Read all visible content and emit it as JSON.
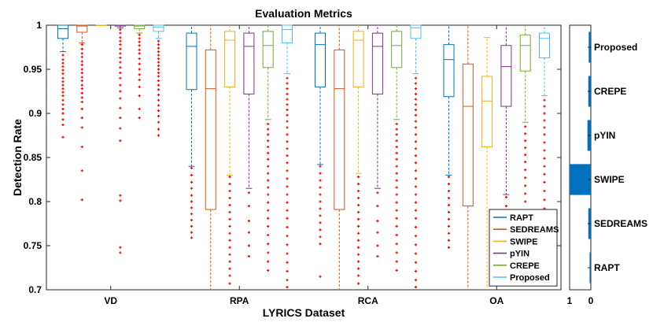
{
  "chart_data": [
    {
      "type": "boxplot",
      "title": "Evaluation Metrics",
      "xlabel": "LYRICS Dataset",
      "ylabel": "Detection Rate",
      "ylim": [
        0.7,
        1.0
      ],
      "yticks": [
        0.7,
        0.75,
        0.8,
        0.85,
        0.9,
        0.95,
        1
      ],
      "ytick_labels": [
        "0.7",
        "0.75",
        "0.8",
        "0.85",
        "0.9",
        "0.95",
        "1"
      ],
      "groups": [
        "VD",
        "RPA",
        "RCA",
        "OA"
      ],
      "legend_location": "bottom-right",
      "series": [
        {
          "name": "RAPT",
          "color": "#0072BD"
        },
        {
          "name": "SEDREAMS",
          "color": "#D95319"
        },
        {
          "name": "SWIPE",
          "color": "#EDB120"
        },
        {
          "name": "pYIN",
          "color": "#7E2F8E"
        },
        {
          "name": "CREPE",
          "color": "#77AC30"
        },
        {
          "name": "Proposed",
          "color": "#4DBEEE"
        }
      ],
      "outlier_color": "#ff0000",
      "boxes": [
        {
          "group": "VD",
          "series": "RAPT",
          "min": 0.97,
          "q1": 0.985,
          "median": 0.996,
          "q3": 1.0,
          "max": 1.0,
          "outliers": [
            0.966,
            0.961,
            0.957,
            0.953,
            0.949,
            0.945,
            0.94,
            0.936,
            0.932,
            0.928,
            0.924,
            0.92,
            0.915,
            0.91,
            0.905,
            0.9,
            0.893,
            0.887,
            0.873
          ]
        },
        {
          "group": "VD",
          "series": "SEDREAMS",
          "min": 0.98,
          "q1": 0.992,
          "median": 0.999,
          "q3": 1.0,
          "max": 1.0,
          "outliers": [
            0.978,
            0.973,
            0.968,
            0.964,
            0.959,
            0.955,
            0.95,
            0.946,
            0.941,
            0.937,
            0.932,
            0.928,
            0.923,
            0.918,
            0.913,
            0.905,
            0.895,
            0.884,
            0.862,
            0.835,
            0.802
          ]
        },
        {
          "group": "VD",
          "series": "SWIPE",
          "min": 1.0,
          "q1": 1.0,
          "median": 1.0,
          "q3": 1.0,
          "max": 1.0,
          "outliers": []
        },
        {
          "group": "VD",
          "series": "pYIN",
          "min": 0.997,
          "q1": 0.999,
          "median": 1.0,
          "q3": 1.0,
          "max": 1.0,
          "outliers": [
            0.995,
            0.991,
            0.986,
            0.982,
            0.978,
            0.973,
            0.968,
            0.963,
            0.958,
            0.952,
            0.946,
            0.94,
            0.932,
            0.925,
            0.917,
            0.906,
            0.895,
            0.883,
            0.869,
            0.807,
            0.801,
            0.748,
            0.742
          ]
        },
        {
          "group": "VD",
          "series": "CREPE",
          "min": 0.991,
          "q1": 0.996,
          "median": 0.999,
          "q3": 1.0,
          "max": 1.0,
          "outliers": [
            0.989,
            0.985,
            0.981,
            0.977,
            0.972,
            0.968,
            0.962,
            0.956,
            0.95,
            0.944,
            0.938,
            0.93,
            0.92,
            0.905,
            0.895
          ]
        },
        {
          "group": "VD",
          "series": "Proposed",
          "min": 0.985,
          "q1": 0.993,
          "median": 0.998,
          "q3": 1.0,
          "max": 1.0,
          "outliers": [
            0.982,
            0.978,
            0.974,
            0.97,
            0.966,
            0.962,
            0.958,
            0.954,
            0.95,
            0.946,
            0.942,
            0.937,
            0.932,
            0.927,
            0.921,
            0.915,
            0.909,
            0.903,
            0.897,
            0.89,
            0.882,
            0.875
          ]
        },
        {
          "group": "RPA",
          "series": "RAPT",
          "min": 0.84,
          "q1": 0.927,
          "median": 0.976,
          "q3": 0.991,
          "max": 1.0,
          "outliers": [
            0.838,
            0.83,
            0.822,
            0.815,
            0.807,
            0.8,
            0.793,
            0.786,
            0.779,
            0.772,
            0.765,
            0.759
          ]
        },
        {
          "group": "RPA",
          "series": "SEDREAMS",
          "min": 0.7,
          "q1": 0.791,
          "median": 0.928,
          "q3": 0.972,
          "max": 1.0,
          "outliers": []
        },
        {
          "group": "RPA",
          "series": "SWIPE",
          "min": 0.83,
          "q1": 0.93,
          "median": 0.983,
          "q3": 0.993,
          "max": 1.0,
          "outliers": [
            0.828,
            0.82,
            0.812,
            0.804,
            0.796,
            0.788,
            0.78,
            0.772,
            0.764,
            0.756,
            0.748,
            0.74,
            0.732,
            0.724,
            0.716,
            0.707
          ]
        },
        {
          "group": "RPA",
          "series": "pYIN",
          "min": 0.815,
          "q1": 0.922,
          "median": 0.976,
          "q3": 0.991,
          "max": 1.0,
          "outliers": [
            0.81,
            0.795,
            0.778,
            0.765,
            0.75,
            0.738
          ]
        },
        {
          "group": "RPA",
          "series": "CREPE",
          "min": 0.893,
          "q1": 0.952,
          "median": 0.977,
          "q3": 0.993,
          "max": 1.0,
          "outliers": [
            0.888,
            0.882,
            0.876,
            0.869,
            0.862,
            0.855,
            0.848,
            0.84,
            0.832,
            0.824,
            0.816,
            0.808,
            0.799,
            0.79,
            0.781,
            0.772,
            0.762,
            0.752,
            0.742,
            0.732,
            0.722
          ]
        },
        {
          "group": "RPA",
          "series": "Proposed",
          "min": 0.945,
          "q1": 0.98,
          "median": 0.995,
          "q3": 1.0,
          "max": 1.0,
          "outliers": [
            0.94,
            0.934,
            0.928,
            0.922,
            0.916,
            0.91,
            0.904,
            0.898,
            0.891,
            0.884,
            0.876,
            0.868,
            0.86,
            0.852,
            0.844,
            0.835,
            0.826,
            0.817,
            0.808,
            0.799,
            0.79,
            0.781,
            0.771,
            0.761,
            0.751,
            0.741,
            0.731,
            0.721,
            0.711,
            0.703
          ]
        },
        {
          "group": "RCA",
          "series": "RAPT",
          "min": 0.842,
          "q1": 0.93,
          "median": 0.978,
          "q3": 0.991,
          "max": 1.0,
          "outliers": [
            0.84,
            0.832,
            0.824,
            0.816,
            0.808,
            0.8,
            0.792,
            0.784,
            0.776,
            0.768,
            0.76,
            0.752,
            0.715
          ]
        },
        {
          "group": "RCA",
          "series": "SEDREAMS",
          "min": 0.7,
          "q1": 0.791,
          "median": 0.928,
          "q3": 0.972,
          "max": 1.0,
          "outliers": []
        },
        {
          "group": "RCA",
          "series": "SWIPE",
          "min": 0.832,
          "q1": 0.93,
          "median": 0.983,
          "q3": 0.993,
          "max": 1.0,
          "outliers": [
            0.828,
            0.82,
            0.812,
            0.804,
            0.796,
            0.788,
            0.78,
            0.772,
            0.764,
            0.756,
            0.748,
            0.74,
            0.732,
            0.724,
            0.716,
            0.707
          ]
        },
        {
          "group": "RCA",
          "series": "pYIN",
          "min": 0.815,
          "q1": 0.922,
          "median": 0.976,
          "q3": 0.991,
          "max": 1.0,
          "outliers": [
            0.81,
            0.795,
            0.778,
            0.765,
            0.75,
            0.738
          ]
        },
        {
          "group": "RCA",
          "series": "CREPE",
          "min": 0.893,
          "q1": 0.952,
          "median": 0.977,
          "q3": 0.993,
          "max": 1.0,
          "outliers": [
            0.888,
            0.882,
            0.876,
            0.869,
            0.862,
            0.855,
            0.848,
            0.84,
            0.832,
            0.824,
            0.816,
            0.808,
            0.799,
            0.79,
            0.781,
            0.772,
            0.762,
            0.752,
            0.742,
            0.732,
            0.722
          ]
        },
        {
          "group": "RCA",
          "series": "Proposed",
          "min": 0.945,
          "q1": 0.985,
          "median": 0.997,
          "q3": 1.0,
          "max": 1.0,
          "outliers": [
            0.94,
            0.934,
            0.928,
            0.922,
            0.916,
            0.91,
            0.904,
            0.898,
            0.891,
            0.884,
            0.876,
            0.868,
            0.86,
            0.852,
            0.844,
            0.835,
            0.826,
            0.817,
            0.808,
            0.799,
            0.79,
            0.781,
            0.771,
            0.761,
            0.751,
            0.741,
            0.731,
            0.721,
            0.711,
            0.703
          ]
        },
        {
          "group": "OA",
          "series": "RAPT",
          "min": 0.83,
          "q1": 0.919,
          "median": 0.961,
          "q3": 0.978,
          "max": 1.0,
          "outliers": [
            0.828,
            0.82,
            0.812,
            0.804,
            0.796,
            0.788,
            0.78,
            0.772,
            0.764,
            0.756,
            0.748
          ]
        },
        {
          "group": "OA",
          "series": "SEDREAMS",
          "min": 0.7,
          "q1": 0.795,
          "median": 0.908,
          "q3": 0.956,
          "max": 1.0,
          "outliers": []
        },
        {
          "group": "OA",
          "series": "SWIPE",
          "min": 0.7,
          "q1": 0.862,
          "median": 0.914,
          "q3": 0.942,
          "max": 0.986,
          "outliers": []
        },
        {
          "group": "OA",
          "series": "pYIN",
          "min": 0.808,
          "q1": 0.908,
          "median": 0.953,
          "q3": 0.977,
          "max": 1.0,
          "outliers": [
            0.805,
            0.795,
            0.785,
            0.775,
            0.765,
            0.755,
            0.745,
            0.735,
            0.724
          ]
        },
        {
          "group": "OA",
          "series": "CREPE",
          "min": 0.89,
          "q1": 0.948,
          "median": 0.977,
          "q3": 0.989,
          "max": 1.0,
          "outliers": [
            0.885,
            0.877,
            0.869,
            0.861,
            0.853,
            0.845,
            0.836,
            0.827,
            0.818,
            0.809,
            0.8,
            0.79,
            0.78,
            0.77,
            0.76,
            0.75,
            0.74,
            0.73,
            0.72
          ]
        },
        {
          "group": "OA",
          "series": "Proposed",
          "min": 0.92,
          "q1": 0.963,
          "median": 0.985,
          "q3": 0.991,
          "max": 1.0,
          "outliers": [
            0.915,
            0.908,
            0.9,
            0.892,
            0.884,
            0.876,
            0.867,
            0.858,
            0.849,
            0.84,
            0.831,
            0.822,
            0.812,
            0.802,
            0.792,
            0.782,
            0.772,
            0.762,
            0.752,
            0.742,
            0.732,
            0.722
          ]
        }
      ]
    },
    {
      "type": "bar",
      "orientation": "horizontal",
      "categories": [
        "RAPT",
        "SEDREAMS",
        "SWIPE",
        "pYIN",
        "CREPE",
        "Proposed"
      ],
      "values": [
        0.06,
        0.12,
        1.0,
        0.16,
        0.12,
        0.1
      ],
      "xlim": [
        1,
        0
      ],
      "xtick_labels": [
        "1",
        "0"
      ],
      "color": "#0072BD"
    }
  ]
}
